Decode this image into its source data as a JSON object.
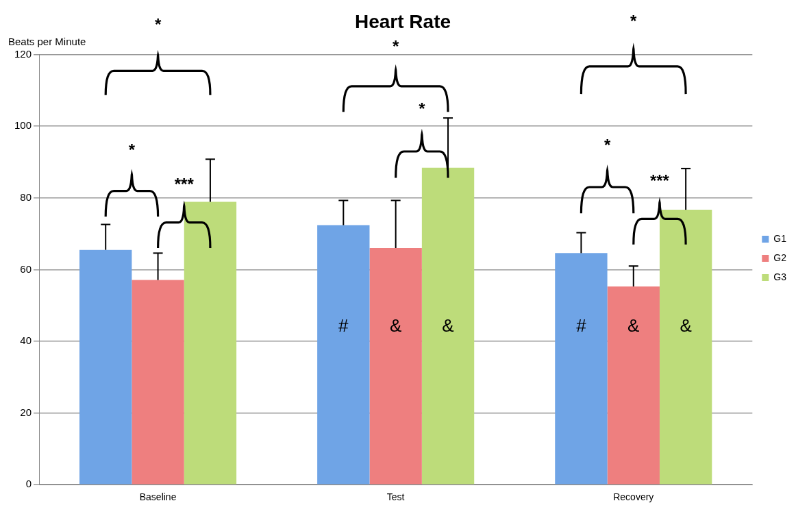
{
  "chart_data": {
    "type": "bar",
    "title": "Heart Rate",
    "ylabel": "Beats per Minute",
    "categories": [
      "Baseline",
      "Test",
      "Recovery"
    ],
    "series": [
      {
        "name": "G1",
        "color": "#6fa4e6",
        "values": [
          65.5,
          72.4,
          64.6
        ],
        "errors": [
          [
            65.5,
            72.6
          ],
          [
            72.4,
            79.3
          ],
          [
            64.6,
            70.3
          ]
        ]
      },
      {
        "name": "G2",
        "color": "#ee7f7f",
        "values": [
          57.1,
          66.0,
          55.3
        ],
        "errors": [
          [
            57.1,
            64.6
          ],
          [
            66.0,
            79.3
          ],
          [
            55.3,
            61.0
          ]
        ]
      },
      {
        "name": "G3",
        "color": "#bddc7a",
        "values": [
          78.9,
          88.4,
          76.7
        ],
        "errors": [
          [
            78.9,
            90.8
          ],
          [
            88.4,
            102.3
          ],
          [
            76.7,
            88.2
          ]
        ]
      }
    ],
    "ylim": [
      0,
      120
    ],
    "yticks": [
      0,
      20,
      40,
      60,
      80,
      100,
      120
    ],
    "grid": "y",
    "legend": "right",
    "annotations": [
      "*",
      "***",
      "*",
      "*",
      "*",
      "*",
      "*",
      "***",
      "#",
      "&",
      "&",
      "#",
      "&",
      "&"
    ]
  }
}
